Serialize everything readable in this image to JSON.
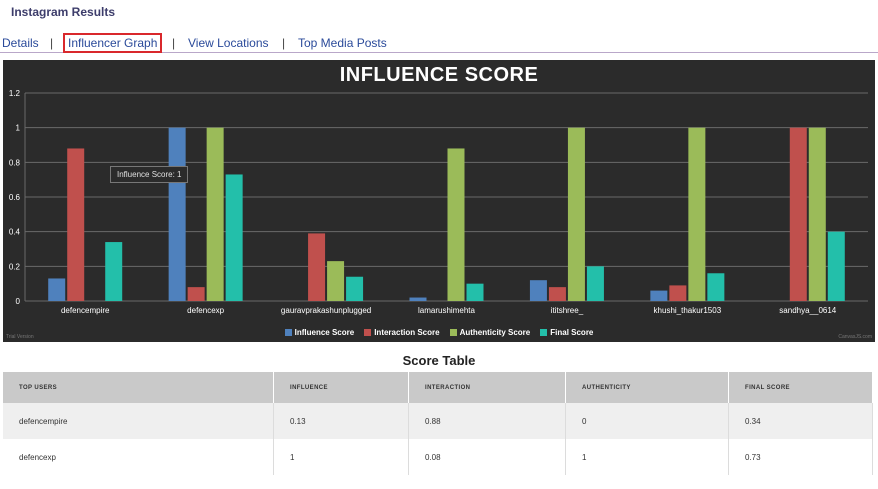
{
  "page": {
    "title": "Instagram Results"
  },
  "nav": {
    "items": [
      {
        "label": "Details"
      },
      {
        "label": "Influencer Graph",
        "active": true
      },
      {
        "label": "View Locations"
      },
      {
        "label": "Top Media Posts"
      }
    ],
    "separator": "|"
  },
  "tooltip": "Influence Score: 1",
  "chart_notes": {
    "left": "Trial Version",
    "right": "CanvasJS.com"
  },
  "colors": {
    "chart_background": "#2b2b2b",
    "active_tab_border": "#d9282c",
    "link": "#2a4a9a"
  },
  "chart_data": {
    "type": "bar",
    "title": "INFLUENCE SCORE",
    "categories": [
      "defencempire",
      "defencexp",
      "gauravprakashunplugged",
      "lamarushimehta",
      "ititshree_",
      "khushi_thakur1503",
      "sandhya__0614"
    ],
    "series": [
      {
        "name": "Influence Score",
        "color": "#4f81bd",
        "values": [
          0.13,
          1,
          0,
          0.02,
          0.12,
          0.06,
          0
        ]
      },
      {
        "name": "Interaction Score",
        "color": "#c0504d",
        "values": [
          0.88,
          0.08,
          0.39,
          0,
          0.08,
          0.09,
          1
        ]
      },
      {
        "name": "Authenticity Score",
        "color": "#9bbb59",
        "values": [
          0,
          1,
          0.23,
          0.88,
          1,
          1,
          1
        ]
      },
      {
        "name": "Final Score",
        "color": "#23bfaa",
        "values": [
          0.34,
          0.73,
          0.14,
          0.1,
          0.2,
          0.16,
          0.4
        ]
      }
    ],
    "yticks": [
      "0",
      "0.2",
      "0.4",
      "0.6",
      "0.8",
      "1",
      "1.2"
    ],
    "ylim": [
      0,
      1.2
    ],
    "grid": true,
    "legend": "bottom-center"
  },
  "score_table": {
    "title": "Score Table",
    "headers": [
      "TOP USERS",
      "INFLUENCE",
      "INTERACTION",
      "AUTHENTICITY",
      "FINAL SCORE"
    ],
    "rows": [
      [
        "defencempire",
        "0.13",
        "0.88",
        "0",
        "0.34"
      ],
      [
        "defencexp",
        "1",
        "0.08",
        "1",
        "0.73"
      ]
    ]
  }
}
